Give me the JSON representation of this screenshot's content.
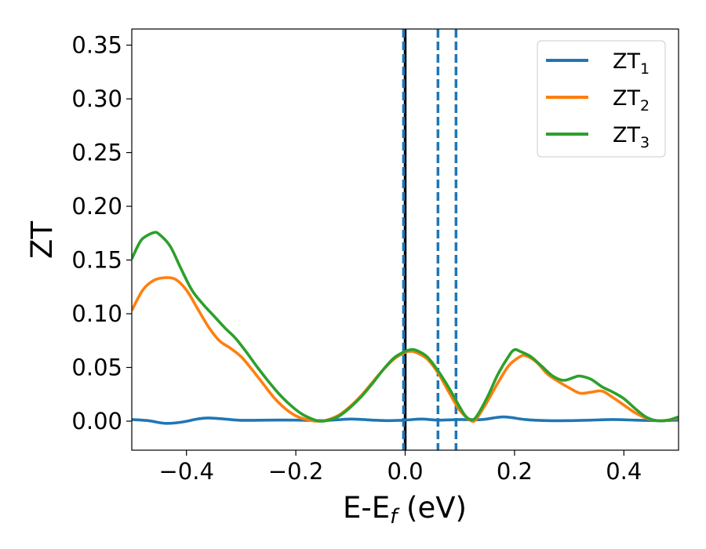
{
  "chart_data": {
    "type": "line",
    "xlabel": {
      "main": "E-E",
      "sub": "f",
      "unit": " (eV)"
    },
    "ylabel": "ZT",
    "xlim": [
      -0.5,
      0.5
    ],
    "ylim": [
      -0.027,
      0.365
    ],
    "xticks": [
      -0.4,
      -0.2,
      0.0,
      0.2,
      0.4
    ],
    "xtick_labels": [
      "−0.4",
      "−0.2",
      "0.0",
      "0.2",
      "0.4"
    ],
    "yticks": [
      0.0,
      0.05,
      0.1,
      0.15,
      0.2,
      0.25,
      0.3,
      0.35
    ],
    "ytick_labels": [
      "0.00",
      "0.05",
      "0.10",
      "0.15",
      "0.20",
      "0.25",
      "0.30",
      "0.35"
    ],
    "grid": false,
    "legend_position": "top-right",
    "vertical_lines": [
      {
        "x": 0.0,
        "style": "solid",
        "color": "#000000"
      },
      {
        "x": -0.003,
        "style": "dashed",
        "color": "#1f77b4"
      },
      {
        "x": 0.06,
        "style": "dashed",
        "color": "#1f77b4"
      },
      {
        "x": 0.093,
        "style": "dashed",
        "color": "#1f77b4"
      }
    ],
    "series": [
      {
        "name": "ZT",
        "name_sub": "1",
        "color": "#1f77b4",
        "points": [
          [
            -0.5,
            0.0015
          ],
          [
            -0.47,
            0.0005
          ],
          [
            -0.44,
            -0.002
          ],
          [
            -0.41,
            -0.001
          ],
          [
            -0.38,
            0.002
          ],
          [
            -0.36,
            0.003
          ],
          [
            -0.33,
            0.002
          ],
          [
            -0.3,
            0.0008
          ],
          [
            -0.25,
            0.001
          ],
          [
            -0.2,
            0.001
          ],
          [
            -0.15,
            0.0005
          ],
          [
            -0.1,
            0.002
          ],
          [
            -0.06,
            0.001
          ],
          [
            -0.03,
            0.0005
          ],
          [
            0.0,
            0.001
          ],
          [
            0.03,
            0.002
          ],
          [
            0.06,
            0.001
          ],
          [
            0.1,
            0.0015
          ],
          [
            0.14,
            0.0015
          ],
          [
            0.18,
            0.004
          ],
          [
            0.22,
            0.0015
          ],
          [
            0.26,
            0.0005
          ],
          [
            0.3,
            0.0005
          ],
          [
            0.34,
            0.001
          ],
          [
            0.38,
            0.0015
          ],
          [
            0.42,
            0.001
          ],
          [
            0.46,
            0.0005
          ],
          [
            0.5,
            0.001
          ]
        ]
      },
      {
        "name": "ZT",
        "name_sub": "2",
        "color": "#ff7f0e",
        "points": [
          [
            -0.5,
            0.103
          ],
          [
            -0.48,
            0.122
          ],
          [
            -0.46,
            0.131
          ],
          [
            -0.44,
            0.1335
          ],
          [
            -0.42,
            0.132
          ],
          [
            -0.4,
            0.122
          ],
          [
            -0.38,
            0.105
          ],
          [
            -0.36,
            0.088
          ],
          [
            -0.34,
            0.075
          ],
          [
            -0.32,
            0.068
          ],
          [
            -0.3,
            0.06
          ],
          [
            -0.28,
            0.048
          ],
          [
            -0.26,
            0.035
          ],
          [
            -0.24,
            0.022
          ],
          [
            -0.22,
            0.012
          ],
          [
            -0.2,
            0.005
          ],
          [
            -0.18,
            0.0015
          ],
          [
            -0.16,
            0.0
          ],
          [
            -0.14,
            0.0015
          ],
          [
            -0.12,
            0.006
          ],
          [
            -0.1,
            0.014
          ],
          [
            -0.08,
            0.024
          ],
          [
            -0.06,
            0.036
          ],
          [
            -0.04,
            0.048
          ],
          [
            -0.02,
            0.058
          ],
          [
            0.0,
            0.064
          ],
          [
            0.01,
            0.065
          ],
          [
            0.02,
            0.064
          ],
          [
            0.04,
            0.058
          ],
          [
            0.06,
            0.045
          ],
          [
            0.08,
            0.027
          ],
          [
            0.1,
            0.01
          ],
          [
            0.12,
            0.0005
          ],
          [
            0.13,
            0.002
          ],
          [
            0.15,
            0.018
          ],
          [
            0.17,
            0.036
          ],
          [
            0.19,
            0.052
          ],
          [
            0.21,
            0.06
          ],
          [
            0.22,
            0.061
          ],
          [
            0.24,
            0.055
          ],
          [
            0.26,
            0.044
          ],
          [
            0.28,
            0.037
          ],
          [
            0.3,
            0.031
          ],
          [
            0.32,
            0.026
          ],
          [
            0.34,
            0.027
          ],
          [
            0.36,
            0.028
          ],
          [
            0.38,
            0.022
          ],
          [
            0.4,
            0.015
          ],
          [
            0.42,
            0.008
          ],
          [
            0.44,
            0.003
          ],
          [
            0.46,
            0.0005
          ],
          [
            0.48,
            0.001
          ],
          [
            0.5,
            0.003
          ]
        ]
      },
      {
        "name": "ZT",
        "name_sub": "3",
        "color": "#2ca02c",
        "points": [
          [
            -0.5,
            0.151
          ],
          [
            -0.49,
            0.162
          ],
          [
            -0.48,
            0.17
          ],
          [
            -0.46,
            0.1755
          ],
          [
            -0.45,
            0.174
          ],
          [
            -0.43,
            0.163
          ],
          [
            -0.41,
            0.142
          ],
          [
            -0.39,
            0.122
          ],
          [
            -0.37,
            0.109
          ],
          [
            -0.35,
            0.098
          ],
          [
            -0.33,
            0.087
          ],
          [
            -0.31,
            0.077
          ],
          [
            -0.29,
            0.064
          ],
          [
            -0.27,
            0.05
          ],
          [
            -0.25,
            0.037
          ],
          [
            -0.23,
            0.025
          ],
          [
            -0.21,
            0.015
          ],
          [
            -0.19,
            0.007
          ],
          [
            -0.17,
            0.002
          ],
          [
            -0.155,
            0.0
          ],
          [
            -0.14,
            0.001
          ],
          [
            -0.12,
            0.005
          ],
          [
            -0.1,
            0.013
          ],
          [
            -0.08,
            0.023
          ],
          [
            -0.06,
            0.035
          ],
          [
            -0.04,
            0.048
          ],
          [
            -0.02,
            0.059
          ],
          [
            0.0,
            0.065
          ],
          [
            0.01,
            0.0665
          ],
          [
            0.02,
            0.066
          ],
          [
            0.04,
            0.06
          ],
          [
            0.06,
            0.047
          ],
          [
            0.08,
            0.031
          ],
          [
            0.1,
            0.013
          ],
          [
            0.11,
            0.005
          ],
          [
            0.12,
            0.0015
          ],
          [
            0.13,
            0.004
          ],
          [
            0.15,
            0.022
          ],
          [
            0.17,
            0.044
          ],
          [
            0.19,
            0.061
          ],
          [
            0.2,
            0.0665
          ],
          [
            0.21,
            0.065
          ],
          [
            0.23,
            0.06
          ],
          [
            0.25,
            0.051
          ],
          [
            0.27,
            0.042
          ],
          [
            0.29,
            0.038
          ],
          [
            0.31,
            0.041
          ],
          [
            0.32,
            0.042
          ],
          [
            0.34,
            0.039
          ],
          [
            0.36,
            0.032
          ],
          [
            0.38,
            0.027
          ],
          [
            0.4,
            0.021
          ],
          [
            0.42,
            0.012
          ],
          [
            0.44,
            0.004
          ],
          [
            0.46,
            0.0005
          ],
          [
            0.48,
            0.0008
          ],
          [
            0.5,
            0.004
          ]
        ]
      }
    ]
  }
}
